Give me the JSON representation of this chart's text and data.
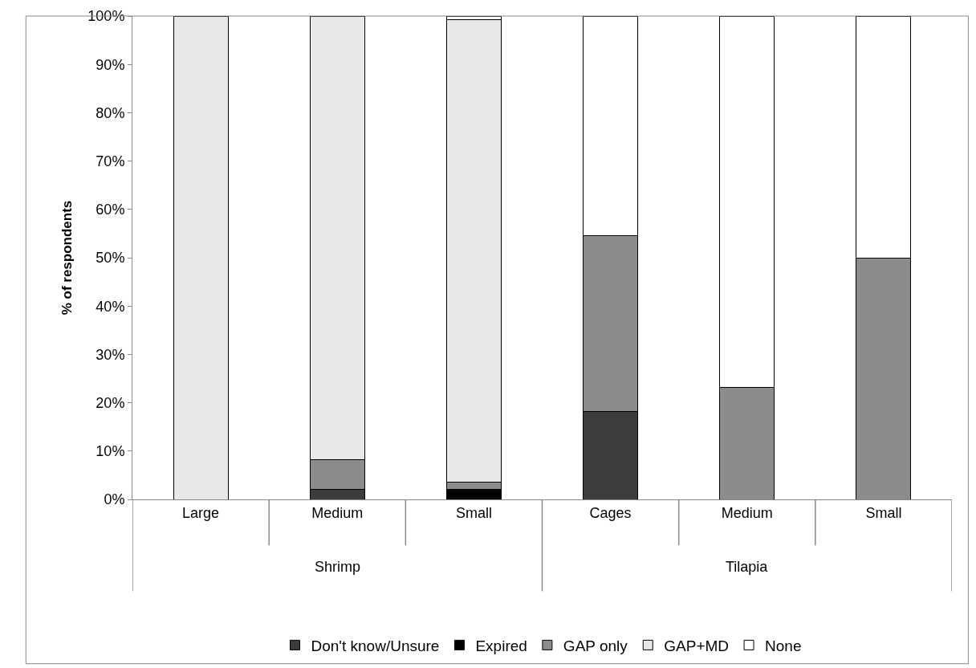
{
  "chart_data": {
    "type": "bar",
    "stacked": true,
    "ylabel": "% of respondents",
    "categories": [
      "Large",
      "Medium",
      "Small",
      "Cages",
      "Medium",
      "Small"
    ],
    "annotations": [
      "Shrimp",
      "Tilapia"
    ],
    "series": [
      {
        "name": "Don't know/Unsure",
        "color": "#3c3c3c",
        "values": [
          0,
          2.1,
          0,
          18.2,
          0,
          0
        ]
      },
      {
        "name": "Expired",
        "color": "#000000",
        "values": [
          0,
          0,
          2.0,
          0,
          0,
          0
        ]
      },
      {
        "name": "GAP only",
        "color": "#8c8c8c",
        "values": [
          0,
          6.1,
          1.6,
          36.3,
          23.1,
          50
        ]
      },
      {
        "name": "GAP+MD",
        "color": "#e8e8e8",
        "values": [
          100,
          91.8,
          95.6,
          0,
          0,
          0
        ]
      },
      {
        "name": "None",
        "color": "#ffffff",
        "values": [
          0,
          0,
          0.8,
          45.5,
          76.9,
          50
        ]
      }
    ],
    "ylim": [
      0,
      100
    ],
    "yticks": [
      {
        "value": 0,
        "label": "0%"
      },
      {
        "value": 10,
        "label": "10%"
      },
      {
        "value": 20,
        "label": "20%"
      },
      {
        "value": 30,
        "label": "30%"
      },
      {
        "value": 40,
        "label": "40%"
      },
      {
        "value": 50,
        "label": "50%"
      },
      {
        "value": 60,
        "label": "60%"
      },
      {
        "value": 70,
        "label": "70%"
      },
      {
        "value": 80,
        "label": "80%"
      },
      {
        "value": 90,
        "label": "90%"
      },
      {
        "value": 100,
        "label": "100%"
      }
    ],
    "legend": "bottom"
  }
}
